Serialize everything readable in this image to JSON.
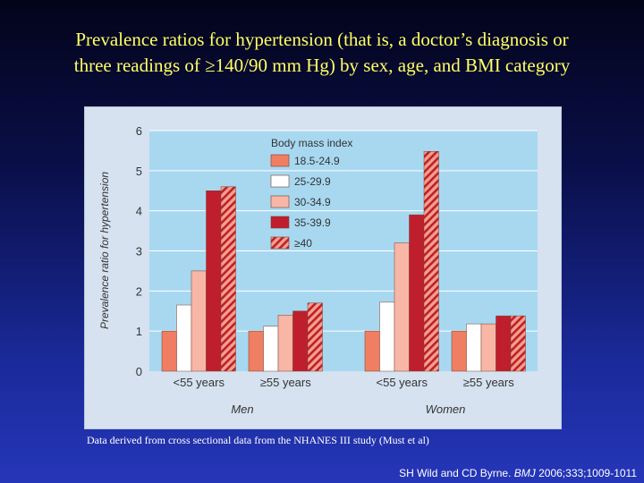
{
  "slide": {
    "title_line1": "Prevalence ratios for hypertension (that is, a doctor’s diagnosis or",
    "title_line2": "three readings of ≥140/90 mm Hg) by sex, age, and BMI category",
    "footnote": "Data derived from cross sectional data from the NHANES III study (Must et al)",
    "citation_authors": "SH Wild and CD Byrne. ",
    "citation_journal": "BMJ",
    "citation_rest": " 2006;333;1009-1011"
  },
  "colors": {
    "bmi_18_5_24_9": "#f07e62",
    "bmi_25_29_9": "#ffffff",
    "bmi_30_34_9": "#f7b6a6",
    "bmi_35_39_9": "#bf1e2d",
    "bmi_40_plus": "#f4a08a",
    "hatch": "#bf1e2d",
    "plot_bg": "#a8d8f0"
  },
  "chart_data": {
    "type": "bar",
    "title": "",
    "ylabel": "Prevalence ratio for hypertension",
    "ylim": [
      0,
      6
    ],
    "yticks": [
      0,
      1,
      2,
      3,
      4,
      5,
      6
    ],
    "legend_title": "Body mass index",
    "legend_position": "top-left",
    "groups": [
      {
        "name": "Men",
        "categories": [
          "<55 years",
          "≥55 years"
        ]
      },
      {
        "name": "Women",
        "categories": [
          "<55 years",
          "≥55 years"
        ]
      }
    ],
    "categories": [
      "<55 years",
      "≥55 years",
      "<55 years",
      "≥55 years"
    ],
    "series": [
      {
        "name": "18.5-24.9",
        "values": [
          1.0,
          1.0,
          1.0,
          1.0
        ]
      },
      {
        "name": "25-29.9",
        "values": [
          1.65,
          1.12,
          1.72,
          1.18
        ]
      },
      {
        "name": "30-34.9",
        "values": [
          2.5,
          1.4,
          3.2,
          1.18
        ]
      },
      {
        "name": "35-39.9",
        "values": [
          4.5,
          1.5,
          3.9,
          1.38
        ]
      },
      {
        "name": "≥40",
        "values": [
          4.6,
          1.7,
          5.48,
          1.38
        ]
      }
    ]
  }
}
